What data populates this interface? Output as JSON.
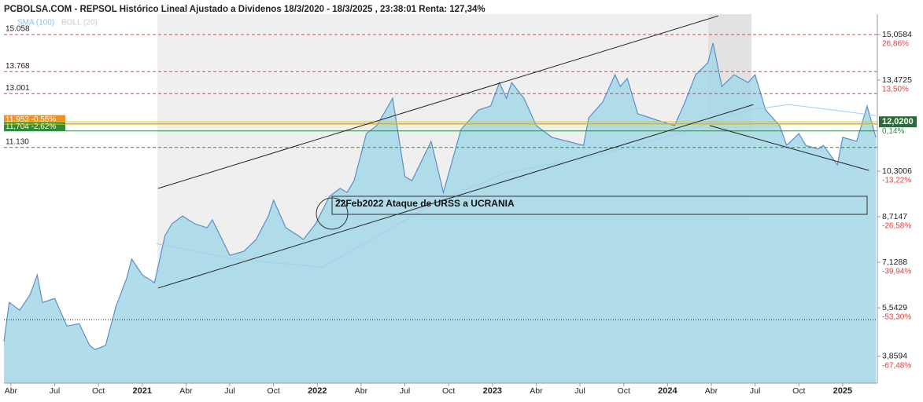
{
  "chart_data": {
    "type": "area",
    "title": "PCBOLSA.COM - REPSOL Histórico Lineal Ajustado a Dividenos 18/3/2020 - 18/3/2025 , 23:38:01 Renta: 127,34%",
    "indicators": [
      "SMA (100)",
      "BOLL (20)"
    ],
    "xlim": [
      2020.21,
      2025.21
    ],
    "ylim": [
      2.92,
      15.77
    ],
    "xticks": [
      {
        "value": 2020.25,
        "label": "Abr"
      },
      {
        "value": 2020.5,
        "label": "Jul"
      },
      {
        "value": 2020.75,
        "label": "Oct"
      },
      {
        "value": 2021,
        "label": "2021"
      },
      {
        "value": 2021.25,
        "label": "Abr"
      },
      {
        "value": 2021.5,
        "label": "Jul"
      },
      {
        "value": 2021.75,
        "label": "Oct"
      },
      {
        "value": 2022,
        "label": "2022"
      },
      {
        "value": 2022.25,
        "label": "Abr"
      },
      {
        "value": 2022.5,
        "label": "Jul"
      },
      {
        "value": 2022.75,
        "label": "Oct"
      },
      {
        "value": 2023,
        "label": "2023"
      },
      {
        "value": 2023.25,
        "label": "Abr"
      },
      {
        "value": 2023.5,
        "label": "Jul"
      },
      {
        "value": 2023.75,
        "label": "Oct"
      },
      {
        "value": 2024,
        "label": "2024"
      },
      {
        "value": 2024.25,
        "label": "Abr"
      },
      {
        "value": 2024.5,
        "label": "Jul"
      },
      {
        "value": 2024.75,
        "label": "Oct"
      },
      {
        "value": 2025,
        "label": "2025"
      }
    ],
    "yticks": [
      {
        "value": 15.0584,
        "label": "15,0584"
      },
      {
        "value": 13.4725,
        "label": "13,4725"
      },
      {
        "value": 10.3006,
        "label": "10,3006"
      },
      {
        "value": 8.7147,
        "label": "8,7147"
      },
      {
        "value": 7.1288,
        "label": "7,1288"
      },
      {
        "value": 5.5429,
        "label": "5,5429"
      },
      {
        "value": 3.8594,
        "label": "3,8594"
      }
    ],
    "ytick_percents": [
      "26,86%",
      "13,50%",
      "-13,22%",
      "-26,58%",
      "-39,94%",
      "-53,30%",
      "-67,48%"
    ],
    "last": {
      "value": 12.02,
      "label": "12,0200",
      "change": "0,14%"
    },
    "levels": [
      {
        "value": 15.058,
        "label": "15.058",
        "color": "#e04040",
        "dash": true
      },
      {
        "value": 13.768,
        "label": "13.768",
        "color": "#e04040",
        "dash": true
      },
      {
        "value": 13.001,
        "label": "13.001",
        "color": "#e04040",
        "dash": true
      },
      {
        "value": 11.953,
        "label": "11,953 -0,55%",
        "color": "#f0901e",
        "dash": false,
        "boxed": true
      },
      {
        "value": 11.704,
        "label": "11,704 -2,62%",
        "color": "#2e8b3c",
        "dash": false,
        "boxed": true
      },
      {
        "value": 11.13,
        "label": "11.130",
        "color": "#2e8b3c",
        "dash": true
      }
    ],
    "dotted_level": 5.13,
    "series": [
      {
        "name": "REPSOL",
        "color": "#5b8fc9",
        "x": [
          2020.21,
          2020.24,
          2020.3,
          2020.36,
          2020.4,
          2020.43,
          2020.5,
          2020.57,
          2020.64,
          2020.7,
          2020.73,
          2020.79,
          2020.85,
          2020.91,
          2020.94,
          2021.0,
          2021.07,
          2021.13,
          2021.17,
          2021.23,
          2021.3,
          2021.37,
          2021.4,
          2021.5,
          2021.58,
          2021.65,
          2021.72,
          2021.75,
          2021.82,
          2021.89,
          2021.92,
          2021.99,
          2022.07,
          2022.13,
          2022.17,
          2022.21,
          2022.28,
          2022.34,
          2022.43,
          2022.5,
          2022.54,
          2022.65,
          2022.72,
          2022.82,
          2022.92,
          2022.99,
          2023.04,
          2023.08,
          2023.11,
          2023.18,
          2023.25,
          2023.34,
          2023.43,
          2023.52,
          2023.55,
          2023.63,
          2023.7,
          2023.73,
          2023.77,
          2023.83,
          2023.9,
          2023.97,
          2024.04,
          2024.1,
          2024.16,
          2024.23,
          2024.26,
          2024.31,
          2024.38,
          2024.46,
          2024.5,
          2024.56,
          2024.64,
          2024.68,
          2024.75,
          2024.79,
          2024.86,
          2024.89,
          2024.97,
          2025.0,
          2025.08,
          2025.14,
          2025.19
        ],
        "values": [
          4.37,
          5.73,
          5.46,
          6.01,
          6.69,
          5.73,
          5.87,
          4.91,
          4.99,
          4.23,
          4.09,
          4.23,
          5.6,
          6.56,
          7.24,
          6.69,
          6.42,
          8.06,
          8.47,
          8.74,
          8.47,
          8.33,
          8.61,
          7.37,
          7.51,
          7.92,
          8.74,
          9.29,
          8.33,
          8.06,
          7.92,
          8.47,
          9.43,
          9.7,
          9.56,
          9.97,
          11.61,
          11.89,
          12.84,
          10.11,
          9.97,
          11.34,
          9.56,
          11.75,
          12.43,
          12.57,
          13.39,
          12.84,
          13.39,
          12.84,
          11.89,
          11.48,
          11.34,
          11.2,
          12.16,
          12.71,
          13.66,
          13.25,
          13.53,
          12.3,
          12.16,
          12.02,
          11.89,
          12.71,
          13.66,
          14.07,
          14.76,
          13.25,
          13.66,
          13.39,
          13.66,
          12.43,
          11.89,
          11.2,
          11.61,
          11.2,
          11.07,
          11.2,
          10.52,
          11.48,
          11.34,
          12.57,
          11.48
        ]
      },
      {
        "name": "SMA (100)",
        "color": "#9fd0ee",
        "x": [
          2021.08,
          2021.53,
          2022.03,
          2022.35,
          2022.66,
          2023.07,
          2023.56,
          2024.06,
          2024.46,
          2024.69,
          2024.95,
          2025.19
        ],
        "values": [
          7.78,
          7.24,
          6.96,
          8.06,
          9.15,
          10.24,
          10.79,
          11.61,
          12.43,
          12.62,
          12.43,
          12.24
        ]
      }
    ],
    "trendlines": [
      {
        "x": [
          2021.09,
          2024.29
        ],
        "values": [
          9.7,
          15.71
        ]
      },
      {
        "x": [
          2021.09,
          2024.49
        ],
        "values": [
          6.23,
          12.62
        ]
      },
      {
        "x": [
          2024.24,
          2025.15
        ],
        "values": [
          11.89,
          10.33
        ]
      }
    ],
    "annotations": [
      {
        "text": "22Feb2022 Ataque de URSS a UCRANIA"
      }
    ]
  }
}
